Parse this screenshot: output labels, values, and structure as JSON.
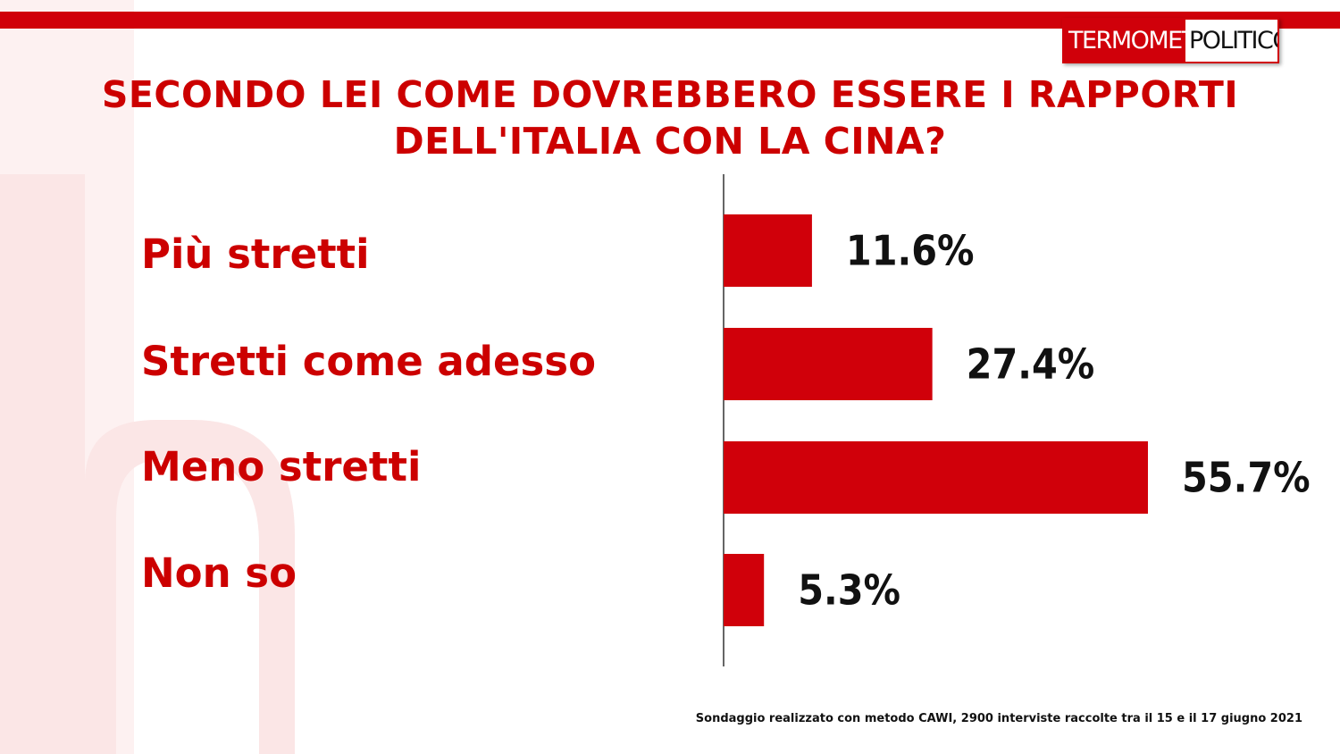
{
  "brand": {
    "logo_part1": "TERMOMETRO",
    "logo_part2": "POLITICO",
    "accent_color": "#d0000a"
  },
  "title_lines": [
    "SECONDO LEI COME DOVREBBERO ESSERE I RAPPORTI",
    "DELL'ITALIA CON LA CINA?"
  ],
  "footnote": "Sondaggio realizzato con metodo CAWI, 2900 interviste raccolte tra il 15  e il 17 giugno 2021",
  "chart_data": {
    "type": "bar",
    "orientation": "horizontal",
    "categories": [
      "Più stretti",
      "Stretti come adesso",
      "Meno stretti",
      "Non so"
    ],
    "values": [
      11.6,
      27.4,
      55.7,
      5.3
    ],
    "value_labels": [
      "11.6%",
      "27.4%",
      "55.7%",
      "5.3%"
    ],
    "unit": "%",
    "bar_color": "#d0000a",
    "xlim": [
      0,
      55.7
    ],
    "grid": false,
    "legend": "none"
  }
}
